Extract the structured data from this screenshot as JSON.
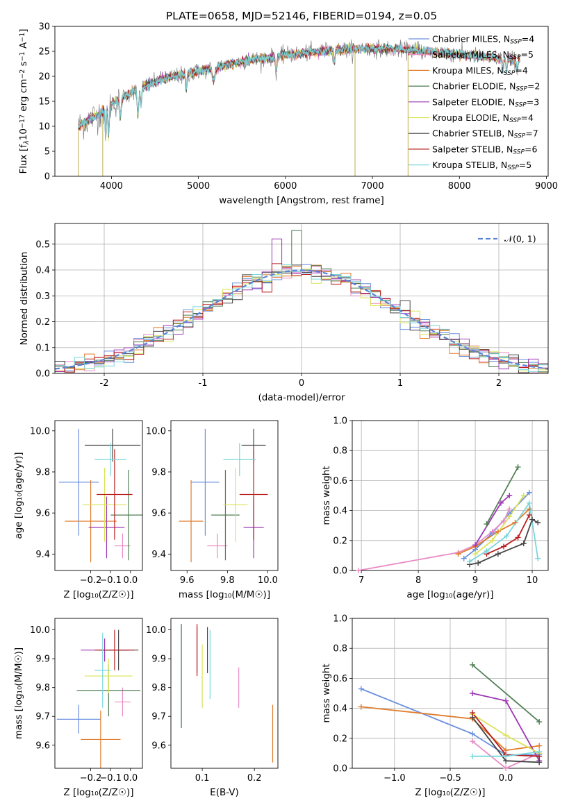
{
  "chart_data": [
    {
      "type": "line",
      "title": "PLATE=0658, MJD=52146, FIBERID=0194, z=0.05",
      "xlabel": "wavelength [Angstrom, rest frame]",
      "ylabel_parts": [
        "Flux [f",
        "λ",
        "10",
        "−17",
        " erg cm",
        "−2",
        " s",
        "−1",
        " A",
        "−1",
        "]"
      ],
      "xlim": [
        3350,
        9020
      ],
      "ylim": [
        0,
        30
      ],
      "xticks": [
        4000,
        5000,
        6000,
        7000,
        8000,
        9000
      ],
      "yticks": [
        0,
        5,
        10,
        15,
        20,
        25,
        30
      ],
      "legend_position": "top-right",
      "spectrum_range": [
        3620,
        8700
      ],
      "spectrum_anchors": [
        [
          3620,
          10
        ],
        [
          3900,
          13
        ],
        [
          4000,
          14.5
        ],
        [
          4300,
          17.5
        ],
        [
          4600,
          19.5
        ],
        [
          5000,
          21
        ],
        [
          5500,
          23
        ],
        [
          6000,
          24.2
        ],
        [
          6500,
          25.2
        ],
        [
          7000,
          25.6
        ],
        [
          7500,
          25.2
        ],
        [
          8000,
          24.4
        ],
        [
          8700,
          23.2
        ]
      ],
      "dropouts": [
        [
          3620,
          0
        ],
        [
          3900,
          0
        ],
        [
          6800,
          0
        ],
        [
          7410,
          0
        ]
      ],
      "series": [
        {
          "name": "Chabrier MILES",
          "nssp": "4",
          "color": "#6a8fe0"
        },
        {
          "name": "Salpeter MILES",
          "nssp": "5",
          "color": "#e98bc4"
        },
        {
          "name": "Kroupa MILES",
          "nssp": "4",
          "color": "#e07b2a"
        },
        {
          "name": "Chabrier ELODIE",
          "nssp": "2",
          "color": "#4f7d52"
        },
        {
          "name": "Salpeter ELODIE",
          "nssp": "3",
          "color": "#9c35b3"
        },
        {
          "name": "Kroupa ELODIE",
          "nssp": "4",
          "color": "#d9e356"
        },
        {
          "name": "Chabrier STELIB",
          "nssp": "7",
          "color": "#444444"
        },
        {
          "name": "Salpeter STELIB",
          "nssp": "6",
          "color": "#b81d1d"
        },
        {
          "name": "Kroupa STELIB",
          "nssp": "5",
          "color": "#78d6dc"
        }
      ]
    },
    {
      "type": "line",
      "xlabel": "(data-model)/error",
      "ylabel": "Normed distribution",
      "xlim": [
        -2.5,
        2.5
      ],
      "ylim": [
        0,
        0.58
      ],
      "xticks": [
        -2,
        -1,
        0,
        1,
        2
      ],
      "yticks": [
        0.0,
        0.1,
        0.2,
        0.3,
        0.4,
        0.5
      ],
      "grid": true,
      "legend_position": "top-right",
      "legend_label": "𝒩(0, 1)",
      "bin_width": 0.1,
      "gaussian": {
        "mean": 0,
        "sigma": 1,
        "color": "#5b84d6",
        "style": "dashed"
      }
    },
    {
      "type": "scatter",
      "xlabel": "Z [log₁₀(Z/Z☉)]",
      "ylabel": "age  [log₁₀(age/yr)]",
      "xlim": [
        -0.38,
        0.06
      ],
      "ylim": [
        9.32,
        10.05
      ],
      "xticks": [
        -0.2,
        -0.1,
        0.0
      ],
      "xticklabels": [
        "−0.2",
        "−0.1",
        "0.0"
      ],
      "yticks": [
        9.4,
        9.6,
        9.8,
        10.0
      ],
      "points": [
        {
          "x": -0.26,
          "y": 9.75,
          "xerr": 0.1,
          "yerr": 0.26,
          "series": "Chabrier MILES"
        },
        {
          "x": -0.04,
          "y": 9.44,
          "xerr": 0.04,
          "yerr": 0.06,
          "series": "Salpeter MILES"
        },
        {
          "x": -0.2,
          "y": 9.56,
          "xerr": 0.13,
          "yerr": 0.2,
          "series": "Kroupa MILES"
        },
        {
          "x": -0.01,
          "y": 9.59,
          "xerr": 0.09,
          "yerr": 0.22,
          "series": "Chabrier ELODIE"
        },
        {
          "x": -0.12,
          "y": 9.53,
          "xerr": 0.09,
          "yerr": 0.15,
          "series": "Salpeter ELODIE"
        },
        {
          "x": -0.13,
          "y": 9.64,
          "xerr": 0.11,
          "yerr": 0.18,
          "series": "Kroupa ELODIE"
        },
        {
          "x": -0.09,
          "y": 9.93,
          "xerr": 0.14,
          "yerr": 0.08,
          "series": "Chabrier STELIB"
        },
        {
          "x": -0.08,
          "y": 9.69,
          "xerr": 0.09,
          "yerr": 0.22,
          "series": "Salpeter STELIB"
        },
        {
          "x": -0.1,
          "y": 9.86,
          "xerr": 0.08,
          "yerr": 0.08,
          "series": "Kroupa STELIB"
        }
      ]
    },
    {
      "type": "scatter",
      "xlabel": "mass [log₁₀(M/M☉)]",
      "xlim": [
        9.52,
        10.05
      ],
      "ylim": [
        9.32,
        10.05
      ],
      "xticks": [
        9.6,
        9.8,
        10.0
      ],
      "yticks": [
        9.4,
        9.6,
        9.8,
        10.0
      ],
      "points": [
        {
          "x": 9.69,
          "y": 9.75,
          "xerr": 0.07,
          "yerr": 0.26,
          "series": "Chabrier MILES"
        },
        {
          "x": 9.75,
          "y": 9.44,
          "xerr": 0.05,
          "yerr": 0.06,
          "series": "Salpeter MILES"
        },
        {
          "x": 9.62,
          "y": 9.56,
          "xerr": 0.06,
          "yerr": 0.2,
          "series": "Kroupa MILES"
        },
        {
          "x": 9.79,
          "y": 9.59,
          "xerr": 0.07,
          "yerr": 0.22,
          "series": "Chabrier ELODIE"
        },
        {
          "x": 9.93,
          "y": 9.53,
          "xerr": 0.05,
          "yerr": 0.15,
          "series": "Salpeter ELODIE"
        },
        {
          "x": 9.84,
          "y": 9.64,
          "xerr": 0.06,
          "yerr": 0.18,
          "series": "Kroupa ELODIE"
        },
        {
          "x": 9.93,
          "y": 9.93,
          "xerr": 0.06,
          "yerr": 0.08,
          "series": "Chabrier STELIB"
        },
        {
          "x": 9.93,
          "y": 9.69,
          "xerr": 0.07,
          "yerr": 0.22,
          "series": "Salpeter STELIB"
        },
        {
          "x": 9.86,
          "y": 9.86,
          "xerr": 0.08,
          "yerr": 0.08,
          "series": "Kroupa STELIB"
        }
      ]
    },
    {
      "type": "line",
      "xlabel": "age  [log₁₀(age/yr)]",
      "ylabel": "mass weight",
      "xlim": [
        6.84,
        10.28
      ],
      "ylim": [
        0,
        1.0
      ],
      "xticks": [
        7,
        8,
        9,
        10
      ],
      "yticks": [
        0.0,
        0.2,
        0.4,
        0.6,
        0.8,
        1.0
      ],
      "grid": true,
      "series": [
        {
          "name": "Chabrier MILES",
          "points": [
            [
              8.8,
              0.08
            ],
            [
              9.0,
              0.14
            ],
            [
              9.3,
              0.25
            ],
            [
              9.6,
              0.38
            ],
            [
              9.95,
              0.52
            ]
          ]
        },
        {
          "name": "Salpeter MILES",
          "points": [
            [
              6.95,
              0.0
            ],
            [
              8.7,
              0.12
            ],
            [
              9.0,
              0.17
            ],
            [
              9.3,
              0.26
            ],
            [
              9.5,
              0.33
            ],
            [
              9.6,
              0.41
            ]
          ]
        },
        {
          "name": "Kroupa MILES",
          "points": [
            [
              8.7,
              0.11
            ],
            [
              9.0,
              0.16
            ],
            [
              9.4,
              0.26
            ],
            [
              9.7,
              0.32
            ],
            [
              9.95,
              0.41
            ]
          ]
        },
        {
          "name": "Chabrier ELODIE",
          "points": [
            [
              9.2,
              0.31
            ],
            [
              9.75,
              0.69
            ]
          ]
        },
        {
          "name": "Salpeter ELODIE",
          "points": [
            [
              9.0,
              0.17
            ],
            [
              9.45,
              0.45
            ],
            [
              9.6,
              0.5
            ]
          ]
        },
        {
          "name": "Kroupa ELODIE",
          "points": [
            [
              9.0,
              0.11
            ],
            [
              9.3,
              0.2
            ],
            [
              9.6,
              0.36
            ],
            [
              9.85,
              0.5
            ]
          ]
        },
        {
          "name": "Chabrier STELIB",
          "points": [
            [
              8.9,
              0.04
            ],
            [
              9.05,
              0.05
            ],
            [
              9.4,
              0.11
            ],
            [
              9.85,
              0.18
            ],
            [
              10.0,
              0.34
            ],
            [
              10.1,
              0.32
            ]
          ]
        },
        {
          "name": "Salpeter STELIB",
          "points": [
            [
              9.2,
              0.11
            ],
            [
              9.5,
              0.16
            ],
            [
              9.75,
              0.22
            ],
            [
              9.95,
              0.37
            ]
          ]
        },
        {
          "name": "Kroupa STELIB",
          "points": [
            [
              8.9,
              0.06
            ],
            [
              9.2,
              0.13
            ],
            [
              9.55,
              0.23
            ],
            [
              9.95,
              0.45
            ],
            [
              10.1,
              0.08
            ]
          ]
        }
      ]
    },
    {
      "type": "scatter",
      "xlabel": "Z [log₁₀(Z/Z☉)]",
      "ylabel": "mass [log₁₀(M/M☉)]",
      "xlim": [
        -0.38,
        0.06
      ],
      "ylim": [
        9.52,
        10.04
      ],
      "xticks": [
        -0.2,
        -0.1,
        0.0
      ],
      "xticklabels": [
        "−0.2",
        "−0.1",
        "0.0"
      ],
      "yticks": [
        9.6,
        9.7,
        9.8,
        9.9,
        10.0
      ],
      "points": [
        {
          "x": -0.26,
          "y": 9.69,
          "xerr": 0.11,
          "yerr": 0.05,
          "series": "Chabrier MILES"
        },
        {
          "x": -0.04,
          "y": 9.75,
          "xerr": 0.04,
          "yerr": 0.05,
          "series": "Salpeter MILES"
        },
        {
          "x": -0.15,
          "y": 9.62,
          "xerr": 0.1,
          "yerr": 0.1,
          "series": "Kroupa MILES"
        },
        {
          "x": -0.11,
          "y": 9.79,
          "xerr": 0.16,
          "yerr": 0.09,
          "series": "Chabrier ELODIE"
        },
        {
          "x": -0.13,
          "y": 9.93,
          "xerr": 0.12,
          "yerr": 0.04,
          "series": "Salpeter ELODIE"
        },
        {
          "x": -0.11,
          "y": 9.84,
          "xerr": 0.12,
          "yerr": 0.06,
          "series": "Kroupa ELODIE"
        },
        {
          "x": -0.06,
          "y": 9.93,
          "xerr": 0.1,
          "yerr": 0.07,
          "series": "Chabrier STELIB"
        },
        {
          "x": -0.08,
          "y": 9.93,
          "xerr": 0.1,
          "yerr": 0.07,
          "series": "Salpeter STELIB"
        },
        {
          "x": -0.14,
          "y": 9.86,
          "xerr": 0.04,
          "yerr": 0.13,
          "series": "Kroupa STELIB"
        }
      ]
    },
    {
      "type": "scatter",
      "xlabel": "E(B-V)",
      "xlim": [
        0.04,
        0.245
      ],
      "ylim": [
        9.52,
        10.04
      ],
      "xticks": [
        0.1,
        0.2
      ],
      "yticks": [
        9.6,
        9.7,
        9.8,
        9.9,
        10.0
      ],
      "points": [
        {
          "x": 0.06,
          "y": 9.84,
          "xerr": 0,
          "yerr": 0.18,
          "series": "Chabrier MILES"
        },
        {
          "x": 0.17,
          "y": 9.8,
          "xerr": 0,
          "yerr": 0.07,
          "series": "Salpeter MILES"
        },
        {
          "x": 0.235,
          "y": 9.64,
          "xerr": 0,
          "yerr": 0.1,
          "series": "Kroupa MILES"
        },
        {
          "x": 0.06,
          "y": 9.84,
          "xerr": 0,
          "yerr": 0.18,
          "series": "Chabrier ELODIE"
        },
        {
          "x": 0.09,
          "y": 9.93,
          "xerr": 0,
          "yerr": 0.08,
          "series": "Salpeter ELODIE"
        },
        {
          "x": 0.1,
          "y": 9.84,
          "xerr": 0,
          "yerr": 0.11,
          "series": "Kroupa ELODIE"
        },
        {
          "x": 0.11,
          "y": 9.93,
          "xerr": 0,
          "yerr": 0.08,
          "series": "Chabrier STELIB"
        },
        {
          "x": 0.09,
          "y": 9.93,
          "xerr": 0,
          "yerr": 0.09,
          "series": "Salpeter STELIB"
        },
        {
          "x": 0.115,
          "y": 9.88,
          "xerr": 0,
          "yerr": 0.12,
          "series": "Kroupa STELIB"
        }
      ]
    },
    {
      "type": "line",
      "xlabel": "Z [log₁₀(Z/Z☉)]",
      "ylabel": "mass weight",
      "xlim": [
        -1.38,
        0.38
      ],
      "ylim": [
        0,
        1.0
      ],
      "xticks": [
        -1.0,
        -0.5,
        0.0
      ],
      "xticklabels": [
        "−1.0",
        "−0.5",
        "0.0"
      ],
      "yticks": [
        0.0,
        0.2,
        0.4,
        0.6,
        0.8,
        1.0
      ],
      "grid": true,
      "series": [
        {
          "name": "Chabrier MILES",
          "points": [
            [
              -1.3,
              0.53
            ],
            [
              -0.3,
              0.23
            ],
            [
              0.0,
              0.09
            ],
            [
              0.3,
              0.09
            ]
          ]
        },
        {
          "name": "Salpeter MILES",
          "points": [
            [
              -0.3,
              0.18
            ],
            [
              0.0,
              0.0
            ],
            [
              0.3,
              0.1
            ]
          ]
        },
        {
          "name": "Kroupa MILES",
          "points": [
            [
              -1.3,
              0.41
            ],
            [
              -0.3,
              0.33
            ],
            [
              0.0,
              0.12
            ],
            [
              0.3,
              0.15
            ]
          ]
        },
        {
          "name": "Chabrier ELODIE",
          "points": [
            [
              -0.3,
              0.69
            ],
            [
              0.3,
              0.31
            ]
          ]
        },
        {
          "name": "Salpeter ELODIE",
          "points": [
            [
              -0.3,
              0.5
            ],
            [
              0.0,
              0.45
            ],
            [
              0.3,
              0.05
            ]
          ]
        },
        {
          "name": "Kroupa ELODIE",
          "points": [
            [
              -0.3,
              0.36
            ],
            [
              0.0,
              0.22
            ],
            [
              0.3,
              0.1
            ]
          ]
        },
        {
          "name": "Chabrier STELIB",
          "points": [
            [
              -0.3,
              0.34
            ],
            [
              0.0,
              0.05
            ],
            [
              0.3,
              0.04
            ],
            [
              0.3,
              0.11
            ]
          ]
        },
        {
          "name": "Salpeter STELIB",
          "points": [
            [
              -0.3,
              0.37
            ],
            [
              0.0,
              0.09
            ],
            [
              0.3,
              0.08
            ]
          ]
        },
        {
          "name": "Kroupa STELIB",
          "points": [
            [
              -0.3,
              0.08
            ],
            [
              0.0,
              0.08
            ],
            [
              0.3,
              0.11
            ]
          ]
        }
      ]
    }
  ]
}
